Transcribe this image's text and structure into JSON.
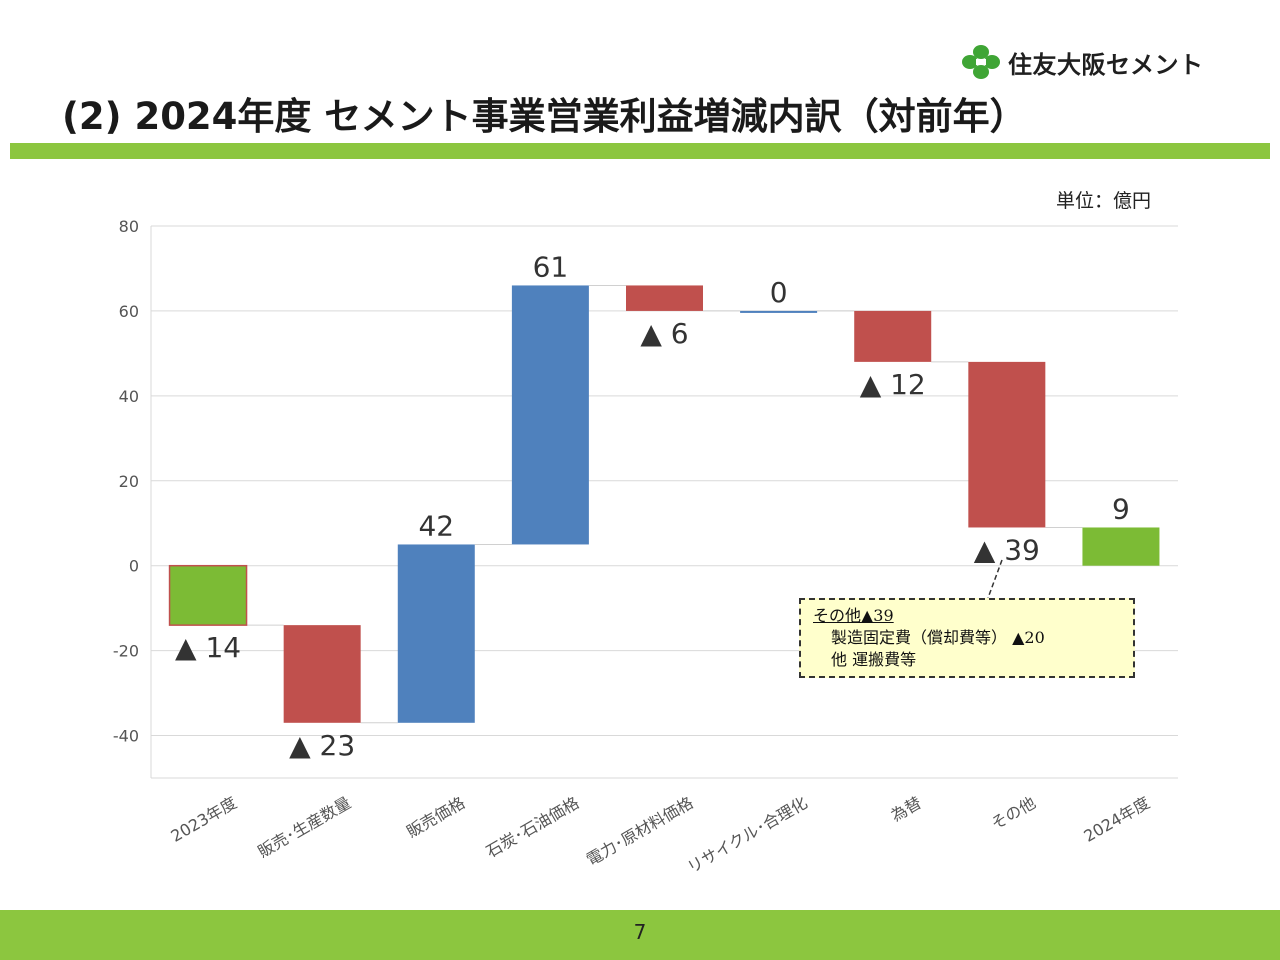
{
  "logo": {
    "company_name": "住友大阪セメント",
    "icon": "company-logo-mark"
  },
  "title": "(2) 2024年度 セメント事業営業利益増減内訳（対前年）",
  "unit": "単位：億円",
  "colors": {
    "accent_green": "#8cc63f",
    "total_bar": "#7cbb35",
    "increase": "#4f81bd",
    "decrease": "#c0504d"
  },
  "chart_data": {
    "type": "bar",
    "subtype": "waterfall",
    "categories": [
      "2023年度",
      "販売･生産数量",
      "販売価格",
      "石炭･石油価格",
      "電力･原材料価格",
      "リサイクル･合理化",
      "為替",
      "その他",
      "2024年度"
    ],
    "values": [
      -14,
      -23,
      42,
      61,
      -6,
      0,
      -12,
      -39,
      9
    ],
    "kinds": [
      "total",
      "delta",
      "delta",
      "delta",
      "delta",
      "delta",
      "delta",
      "delta",
      "total"
    ],
    "data_labels": [
      "▲ 14",
      "▲ 23",
      "42",
      "61",
      "▲ 6",
      "0",
      "▲ 12",
      "▲ 39",
      "9"
    ],
    "ylim": [
      -50,
      80
    ],
    "yticks": [
      80,
      60,
      40,
      20,
      0,
      -20,
      -40
    ],
    "grid": true,
    "annotation": {
      "title": "その他▲39",
      "lines": [
        "製造固定費（償却費等） ▲20",
        "他 運搬費等"
      ]
    }
  },
  "footer": {
    "page_number": "7"
  }
}
